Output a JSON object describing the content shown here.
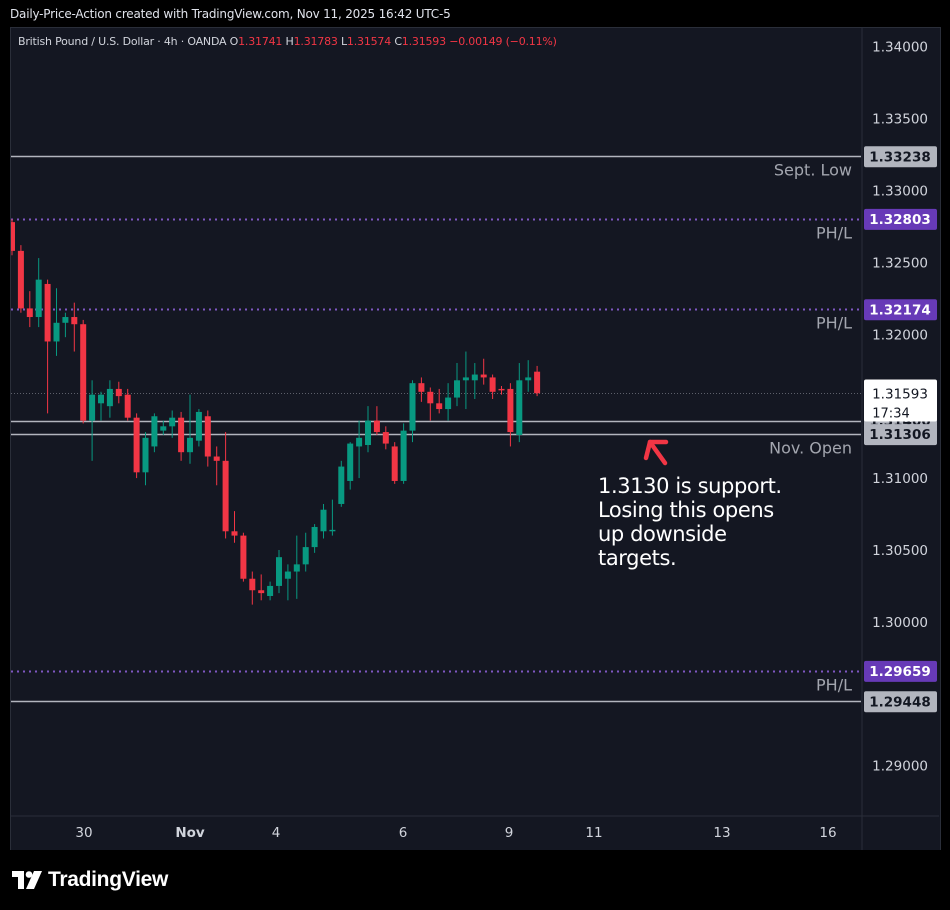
{
  "header": {
    "caption": "Daily-Price-Action created with TradingView.com, Nov 11, 2025 16:42 UTC-5"
  },
  "legend": {
    "symbol": "British Pound / U.S. Dollar · 4h · OANDA",
    "o_label": "O",
    "o_value": "1.31741",
    "h_label": "H",
    "h_value": "1.31783",
    "l_label": "L",
    "l_value": "1.31574",
    "c_label": "C",
    "c_value": "1.31593",
    "change": "−0.00149 (−0.11%)"
  },
  "annotation": {
    "lines": [
      "1.3130 is support.",
      "Losing this opens",
      "up downside",
      "targets."
    ],
    "arrow_color": "#f23645"
  },
  "footer": {
    "brand": "TradingView"
  },
  "colors": {
    "background": "#141722",
    "up": "#089981",
    "down": "#f23645",
    "grey_line": "#b2b5be",
    "purple_line": "#7e57c2",
    "purple_label": "#673ab7"
  },
  "chart_data": {
    "type": "candlestick",
    "symbol": "British Pound / U.S. Dollar",
    "interval": "4h",
    "x_tick_labels": [
      "30",
      "Nov",
      "4",
      "6",
      "9",
      "11",
      "13",
      "16"
    ],
    "y_tick_labels": [
      "1.34000",
      "1.33500",
      "1.33000",
      "1.32500",
      "1.32000",
      "1.31000",
      "1.30500",
      "1.30000",
      "1.29000"
    ],
    "ylim": [
      1.2865,
      1.3413
    ],
    "levels": [
      {
        "price": 1.33238,
        "label": "1.33238",
        "text": "Sept. Low",
        "style": "solid",
        "color": "#b2b5be"
      },
      {
        "price": 1.32803,
        "label": "1.32803",
        "text": "PH/L",
        "style": "dotted",
        "color": "#673ab7"
      },
      {
        "price": 1.32174,
        "label": "1.32174",
        "text": "PH/L",
        "style": "dotted",
        "color": "#673ab7"
      },
      {
        "price": 1.314,
        "label": "1.31400",
        "text": "",
        "style": "solid",
        "color": "#b2b5be"
      },
      {
        "price": 1.31306,
        "label": "1.31306",
        "text": "Nov. Open",
        "style": "solid",
        "color": "#b2b5be"
      },
      {
        "price": 1.29659,
        "label": "1.29659",
        "text": "PH/L",
        "style": "dotted",
        "color": "#673ab7"
      },
      {
        "price": 1.29448,
        "label": "1.29448",
        "text": "",
        "style": "solid",
        "color": "#b2b5be"
      }
    ],
    "current_price": {
      "value": 1.31593,
      "label": "1.31593",
      "countdown": "17:34"
    },
    "candles": [
      [
        1.3278,
        1.328,
        1.3255,
        1.3258
      ],
      [
        1.3258,
        1.3262,
        1.3215,
        1.3218
      ],
      [
        1.3218,
        1.323,
        1.3205,
        1.3212
      ],
      [
        1.3212,
        1.3253,
        1.3205,
        1.3238
      ],
      [
        1.3235,
        1.3238,
        1.3145,
        1.3195
      ],
      [
        1.3195,
        1.3232,
        1.3185,
        1.3208
      ],
      [
        1.3208,
        1.3215,
        1.3198,
        1.3212
      ],
      [
        1.3212,
        1.3222,
        1.3188,
        1.3207
      ],
      [
        1.3207,
        1.321,
        1.3138,
        1.314
      ],
      [
        1.314,
        1.3168,
        1.3112,
        1.3158
      ],
      [
        1.3152,
        1.316,
        1.314,
        1.3158
      ],
      [
        1.315,
        1.3168,
        1.3142,
        1.3162
      ],
      [
        1.3162,
        1.3167,
        1.3152,
        1.3157
      ],
      [
        1.3158,
        1.3162,
        1.314,
        1.3142
      ],
      [
        1.3142,
        1.3145,
        1.31,
        1.3104
      ],
      [
        1.3104,
        1.3132,
        1.3095,
        1.3128
      ],
      [
        1.3122,
        1.3145,
        1.3118,
        1.3143
      ],
      [
        1.3133,
        1.314,
        1.313,
        1.3136
      ],
      [
        1.3136,
        1.3147,
        1.3128,
        1.3142
      ],
      [
        1.3142,
        1.3146,
        1.3112,
        1.3118
      ],
      [
        1.3118,
        1.3158,
        1.311,
        1.3128
      ],
      [
        1.3126,
        1.3148,
        1.3122,
        1.3146
      ],
      [
        1.3143,
        1.3147,
        1.3108,
        1.3115
      ],
      [
        1.3115,
        1.3122,
        1.3095,
        1.3112
      ],
      [
        1.3112,
        1.3132,
        1.3058,
        1.3063
      ],
      [
        1.3063,
        1.3077,
        1.3055,
        1.306
      ],
      [
        1.306,
        1.3062,
        1.3028,
        1.303
      ],
      [
        1.303,
        1.3035,
        1.3012,
        1.3022
      ],
      [
        1.3022,
        1.3033,
        1.3015,
        1.302
      ],
      [
        1.3018,
        1.3028,
        1.3015,
        1.3025
      ],
      [
        1.3025,
        1.305,
        1.302,
        1.3045
      ],
      [
        1.303,
        1.304,
        1.3015,
        1.3035
      ],
      [
        1.3035,
        1.306,
        1.3016,
        1.304
      ],
      [
        1.304,
        1.3062,
        1.3035,
        1.3052
      ],
      [
        1.3052,
        1.3068,
        1.3048,
        1.3066
      ],
      [
        1.3063,
        1.3082,
        1.3058,
        1.3078
      ],
      [
        1.3063,
        1.3085,
        1.306,
        1.3064
      ],
      [
        1.3082,
        1.3112,
        1.308,
        1.3108
      ],
      [
        1.3098,
        1.3125,
        1.3092,
        1.3124
      ],
      [
        1.3122,
        1.314,
        1.31,
        1.3128
      ],
      [
        1.3123,
        1.315,
        1.3118,
        1.314
      ],
      [
        1.314,
        1.315,
        1.313,
        1.3132
      ],
      [
        1.3132,
        1.3136,
        1.312,
        1.3124
      ],
      [
        1.3122,
        1.3125,
        1.3096,
        1.3098
      ],
      [
        1.3098,
        1.3138,
        1.3096,
        1.3133
      ],
      [
        1.3133,
        1.3168,
        1.3125,
        1.3166
      ],
      [
        1.3166,
        1.317,
        1.3153,
        1.316
      ],
      [
        1.316,
        1.3163,
        1.314,
        1.3152
      ],
      [
        1.3152,
        1.3162,
        1.3145,
        1.3148
      ],
      [
        1.3148,
        1.3166,
        1.314,
        1.3156
      ],
      [
        1.3156,
        1.318,
        1.315,
        1.3168
      ],
      [
        1.3168,
        1.3188,
        1.3148,
        1.317
      ],
      [
        1.3168,
        1.318,
        1.3155,
        1.3172
      ],
      [
        1.3172,
        1.3183,
        1.3165,
        1.317
      ],
      [
        1.317,
        1.3172,
        1.3155,
        1.316
      ],
      [
        1.3162,
        1.3164,
        1.3158,
        1.3161
      ],
      [
        1.3162,
        1.3166,
        1.3122,
        1.3132
      ],
      [
        1.313,
        1.318,
        1.3125,
        1.3168
      ],
      [
        1.3168,
        1.3182,
        1.316,
        1.317
      ],
      [
        1.3174,
        1.3178,
        1.3157,
        1.3159
      ]
    ]
  }
}
